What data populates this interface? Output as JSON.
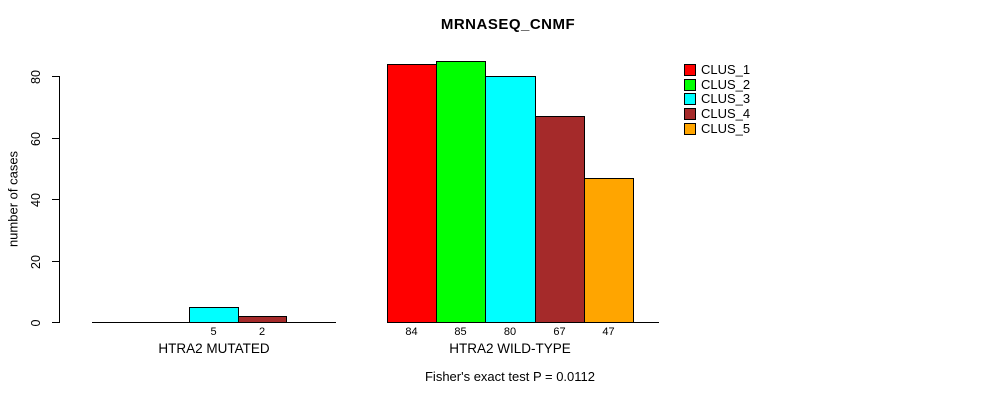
{
  "chart_data": {
    "type": "bar",
    "title": "MRNASEQ_CNMF",
    "ylabel": "number of cases",
    "groups": [
      "HTRA2 MUTATED",
      "HTRA2 WILD-TYPE"
    ],
    "series": [
      {
        "name": "CLUS_1",
        "color": "#FF0000",
        "values": [
          0,
          84
        ]
      },
      {
        "name": "CLUS_2",
        "color": "#00FF00",
        "values": [
          0,
          85
        ]
      },
      {
        "name": "CLUS_3",
        "color": "#00FFFF",
        "values": [
          5,
          80
        ]
      },
      {
        "name": "CLUS_4",
        "color": "#A52A2A",
        "values": [
          2,
          67
        ]
      },
      {
        "name": "CLUS_5",
        "color": "#FFA500",
        "values": [
          0,
          47
        ]
      }
    ],
    "yticks": [
      0,
      20,
      40,
      60,
      80
    ],
    "ylim": [
      0,
      88
    ],
    "grid": false,
    "legend_position": "top-right",
    "bar_value_labels": "shown beneath each bar when value > 0",
    "annotation": "Fisher's exact test P = 0.0112"
  }
}
